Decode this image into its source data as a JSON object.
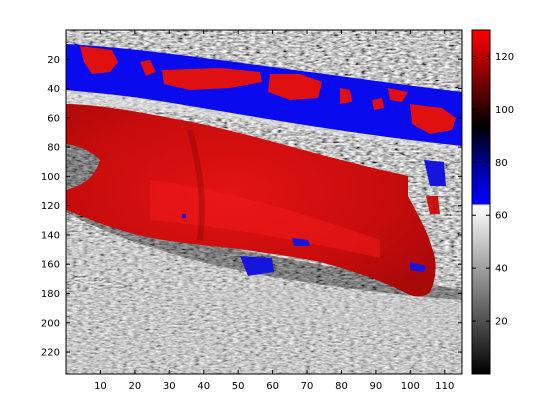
{
  "image": {
    "x_range": [
      0,
      115
    ],
    "y_range": [
      0,
      235
    ],
    "x_ticks": [
      "10",
      "20",
      "30",
      "40",
      "50",
      "60",
      "70",
      "80",
      "90",
      "100",
      "110"
    ],
    "y_ticks": [
      "20",
      "40",
      "60",
      "80",
      "100",
      "120",
      "140",
      "160",
      "180",
      "200",
      "220"
    ]
  },
  "colorbar": {
    "range": [
      0,
      130
    ],
    "ticks": [
      "20",
      "40",
      "60",
      "80",
      "100",
      "120"
    ],
    "colors": {
      "gray_low": "#000000",
      "gray_high": "#ffffff",
      "blue": "#0000ff",
      "dark": "#000000",
      "red": "#ff0000"
    }
  }
}
